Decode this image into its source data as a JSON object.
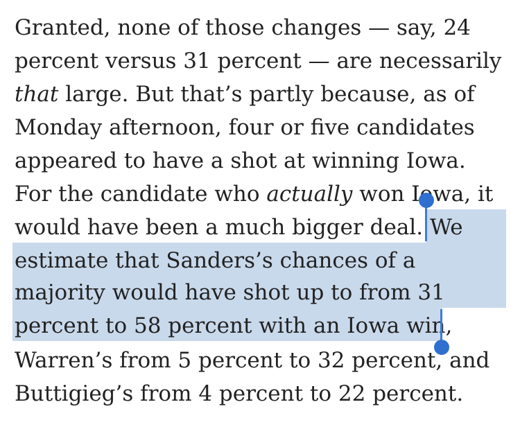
{
  "article": {
    "lines": [
      "Granted, none of those changes — say, 24",
      "percent versus 31 percent — are necessarily",
      " large. But that’s partly because, as of",
      "Monday afternoon, four or five candidates",
      "appeared to have a shot at winning Iowa.",
      " won Iowa, it",
      "would have been a much bigger deal. ",
      "estimate that Sanders’s chances of a",
      "majority would have shot up to from 31",
      "percent to 58 percent with an Iowa win",
      "Warren’s from 5 percent to 32 percent, and",
      "Buttigieg’s from 4 percent to 22 percent."
    ],
    "emphasis": {
      "that": "that",
      "actually": "actually"
    },
    "line6_prefix": "For the candidate who ",
    "line7_selected_tail": "We",
    "line10_tail": ","
  },
  "selection": {
    "text": "We estimate that Sanders’s chances of a majority would have shot up to from 31 percent to 58 percent with an Iowa win",
    "highlight_color": "#c9d9ec",
    "handle_color": "#2f6fd0"
  }
}
